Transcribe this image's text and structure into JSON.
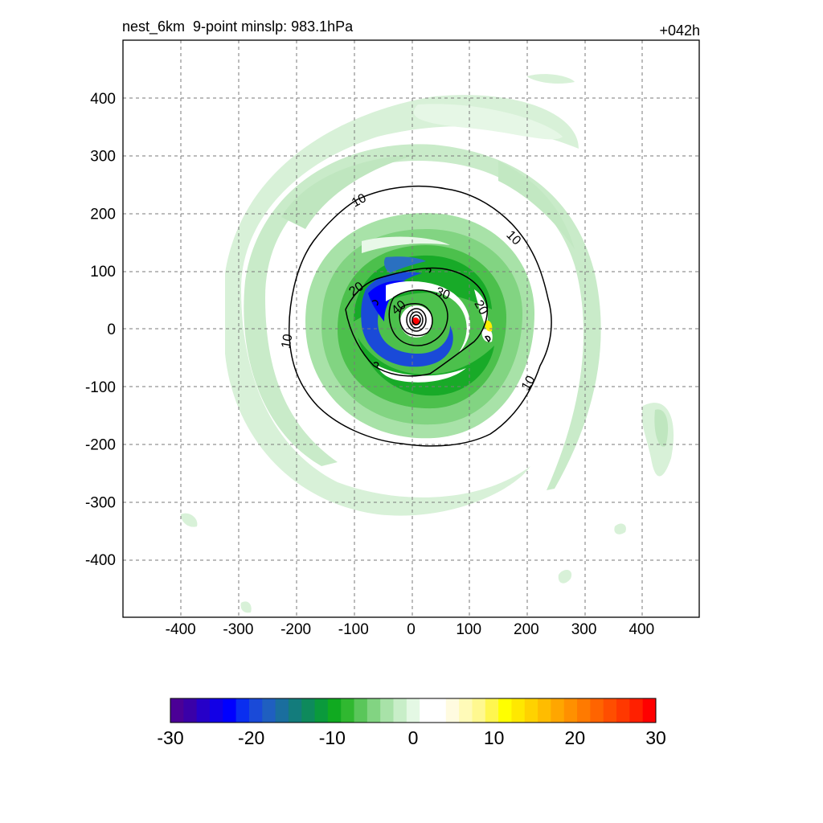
{
  "chart_data": {
    "type": "heatmap",
    "title": "nest_6km  9-point minslp: 983.1hPa",
    "forecast_hour": "+042h",
    "x_ticks": [
      -400,
      -300,
      -200,
      -100,
      0,
      100,
      200,
      300,
      400
    ],
    "y_ticks": [
      400,
      300,
      200,
      100,
      0,
      -100,
      -200,
      -300,
      -400
    ],
    "xlim": [
      -500,
      500
    ],
    "ylim": [
      -500,
      500
    ],
    "grid": true,
    "colorbar": {
      "min": -30,
      "max": 30,
      "ticks": [
        -30,
        -20,
        -10,
        0,
        10,
        20,
        30
      ],
      "colors": [
        "#4b0096",
        "#3a00a8",
        "#2600c8",
        "#1200e6",
        "#0000ff",
        "#0a2ef0",
        "#1a4ad8",
        "#1f5fc0",
        "#1a6e9e",
        "#137c7c",
        "#0e8a5c",
        "#0a9a3c",
        "#10aa20",
        "#30b830",
        "#5ac65a",
        "#82d482",
        "#a8e2a8",
        "#c8eec8",
        "#e4f8e4",
        "#ffffff",
        "#ffffff",
        "#fffbe0",
        "#fffab8",
        "#fff890",
        "#fff650",
        "#ffff00",
        "#ffe800",
        "#ffd200",
        "#ffbc00",
        "#ffa600",
        "#ff9000",
        "#ff7a00",
        "#ff6400",
        "#ff4e00",
        "#ff3800",
        "#ff2000",
        "#ff0000"
      ]
    },
    "contour_labels": [
      "10",
      "10",
      "10",
      "10",
      "20",
      "20",
      "30",
      "40"
    ]
  }
}
